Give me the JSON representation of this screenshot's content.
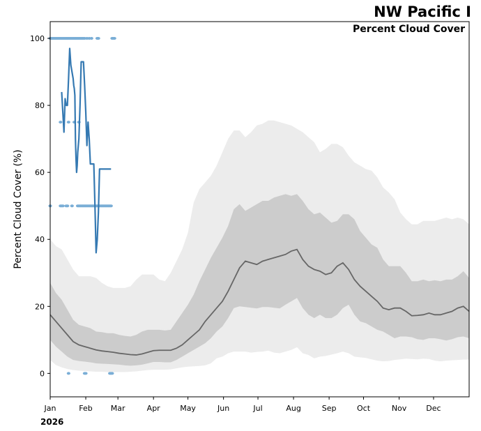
{
  "chart_data": {
    "type": "line",
    "title": "NW Pacific I",
    "subtitle": "Percent Cloud Cover",
    "ylabel": "Percent Cloud Cover (%)",
    "xlabel": "",
    "year_label": "2026",
    "xlim": [
      0,
      365
    ],
    "ylim": [
      -7,
      105
    ],
    "y_ticks": [
      0,
      20,
      40,
      60,
      80,
      100
    ],
    "x_ticks": [
      {
        "day": 0,
        "label": "Jan"
      },
      {
        "day": 31,
        "label": "Feb"
      },
      {
        "day": 59,
        "label": "Mar"
      },
      {
        "day": 90,
        "label": "Apr"
      },
      {
        "day": 120,
        "label": "May"
      },
      {
        "day": 151,
        "label": "Jun"
      },
      {
        "day": 181,
        "label": "Jul"
      },
      {
        "day": 212,
        "label": "Aug"
      },
      {
        "day": 243,
        "label": "Sep"
      },
      {
        "day": 273,
        "label": "Oct"
      },
      {
        "day": 304,
        "label": "Nov"
      },
      {
        "day": 334,
        "label": "Dec"
      }
    ],
    "climatology": {
      "day": [
        0,
        5,
        10,
        15,
        20,
        25,
        30,
        35,
        40,
        45,
        50,
        55,
        60,
        65,
        70,
        75,
        80,
        85,
        90,
        95,
        100,
        105,
        110,
        115,
        120,
        125,
        130,
        135,
        140,
        145,
        150,
        155,
        160,
        165,
        170,
        175,
        180,
        185,
        190,
        195,
        200,
        205,
        210,
        215,
        220,
        225,
        230,
        235,
        240,
        245,
        250,
        255,
        260,
        265,
        270,
        275,
        280,
        285,
        290,
        295,
        300,
        305,
        310,
        315,
        320,
        325,
        330,
        335,
        340,
        345,
        350,
        355,
        360,
        365
      ],
      "p10": [
        4,
        2.5,
        1.8,
        1.3,
        1.0,
        0.8,
        0.7,
        0.6,
        0.5,
        0.5,
        0.4,
        0.4,
        0.4,
        0.4,
        0.5,
        0.6,
        0.8,
        1.0,
        1.1,
        1.1,
        1.1,
        1.2,
        1.5,
        1.8,
        2.0,
        2.1,
        2.2,
        2.4,
        3.0,
        4.5,
        5.0,
        6.0,
        6.5,
        6.5,
        6.5,
        6.2,
        6.4,
        6.5,
        6.8,
        6.2,
        6.0,
        6.5,
        7.0,
        7.8,
        6.0,
        5.5,
        4.5,
        5.0,
        5.2,
        5.6,
        6.0,
        6.5,
        6.0,
        5.0,
        4.8,
        4.6,
        4.2,
        3.8,
        3.6,
        3.7,
        4.0,
        4.2,
        4.4,
        4.3,
        4.2,
        4.4,
        4.3,
        3.8,
        3.6,
        3.8,
        3.9,
        4.0,
        4.1,
        4.1
      ],
      "p25": [
        10,
        8,
        6.5,
        5,
        4,
        3.7,
        3.5,
        3.3,
        3.0,
        2.9,
        2.8,
        2.7,
        2.6,
        2.4,
        2.3,
        2.4,
        2.6,
        3.0,
        3.4,
        3.4,
        3.3,
        3.3,
        4.0,
        5.0,
        6.0,
        7.0,
        8.0,
        9.0,
        10.5,
        12.5,
        14.0,
        16.5,
        19.5,
        20.0,
        19.8,
        19.6,
        19.4,
        19.8,
        19.8,
        19.6,
        19.4,
        20.5,
        21.5,
        22.5,
        19.5,
        17.5,
        16.5,
        17.5,
        16.5,
        16.5,
        17.5,
        19.5,
        20.5,
        17.5,
        15.5,
        15.0,
        14.0,
        13.0,
        12.5,
        11.5,
        10.5,
        11.0,
        11.0,
        10.8,
        10.2,
        10.0,
        10.5,
        10.5,
        10.2,
        9.8,
        10.2,
        10.8,
        11.0,
        10.5
      ],
      "p75": [
        27,
        24,
        22,
        19,
        16,
        14.5,
        14,
        13.5,
        12.5,
        12.3,
        12.0,
        12.0,
        11.5,
        11.2,
        11.0,
        11.5,
        12.5,
        13.0,
        13.0,
        13.0,
        12.8,
        13.0,
        15.5,
        18.0,
        20.5,
        23.5,
        27.5,
        31,
        34.5,
        37.5,
        40.5,
        44,
        49,
        50.5,
        48.5,
        49.5,
        50.5,
        51.5,
        51.5,
        52.5,
        53,
        53.5,
        53,
        53.5,
        51.5,
        49,
        47.5,
        48,
        46.5,
        45,
        45.5,
        47.5,
        47.5,
        46,
        42.5,
        40.5,
        38.5,
        37.5,
        34,
        32,
        32,
        32,
        30,
        27.5,
        27.5,
        28,
        27.5,
        27.8,
        27.5,
        28,
        28,
        29,
        30.5,
        28.5
      ],
      "p90": [
        40,
        38,
        37,
        34,
        31,
        29,
        29,
        29,
        28.5,
        27,
        26,
        25.5,
        25.5,
        25.5,
        26,
        28,
        29.5,
        29.5,
        29.5,
        28,
        27.5,
        30,
        33.5,
        37,
        42,
        51,
        55,
        57,
        59,
        62,
        66,
        70,
        72.5,
        72.5,
        70.5,
        72,
        74,
        74.5,
        75.5,
        75.5,
        75,
        74.5,
        74,
        73,
        72,
        70.5,
        69,
        66,
        67,
        68.5,
        68.5,
        67.5,
        65,
        63,
        62,
        61,
        60.5,
        58.5,
        55.5,
        54,
        52,
        48,
        46,
        44.5,
        44.5,
        45.5,
        45.5,
        45.5,
        46,
        46.5,
        46,
        46.5,
        46,
        44.5
      ],
      "median": [
        17.5,
        15.5,
        13.5,
        11.5,
        9.5,
        8.5,
        8,
        7.5,
        7,
        6.7,
        6.5,
        6.3,
        6.0,
        5.8,
        5.6,
        5.5,
        5.8,
        6.3,
        6.8,
        6.9,
        6.9,
        6.9,
        7.5,
        8.5,
        10,
        11.5,
        13,
        15.5,
        17.5,
        19.5,
        21.5,
        24.5,
        28,
        31.5,
        33.5,
        33,
        32.5,
        33.5,
        34,
        34.5,
        35,
        35.5,
        36.5,
        37,
        34,
        32,
        31,
        30.5,
        29.5,
        30,
        32,
        33,
        31,
        28,
        26,
        24.5,
        23,
        21.5,
        19.5,
        19,
        19.5,
        19.5,
        18.5,
        17.2,
        17.3,
        17.5,
        18,
        17.5,
        17.5,
        18,
        18.5,
        19.5,
        20,
        18.5
      ]
    },
    "current": {
      "name": "2026",
      "color": "#3579b2",
      "day": [
        10,
        11,
        12,
        13,
        14,
        15,
        16,
        17,
        18,
        19,
        20,
        20.5,
        21,
        21.5,
        22,
        22.5,
        23,
        23.5,
        24,
        25,
        26,
        27,
        28,
        29,
        30,
        31,
        32,
        33,
        34,
        35,
        36,
        37,
        38,
        39,
        40,
        41,
        42,
        43,
        44,
        45,
        46,
        47,
        48,
        49,
        50,
        51,
        52,
        53
      ],
      "values": [
        84,
        78,
        72,
        82,
        80,
        80,
        88,
        97,
        92,
        90,
        88,
        86,
        85,
        83,
        70,
        64,
        60,
        62,
        66,
        70,
        80,
        93,
        93,
        93,
        86,
        78,
        68,
        75,
        70,
        62.5,
        62.5,
        62.5,
        62.5,
        50,
        36,
        40,
        48,
        61,
        61,
        61,
        61,
        61,
        61,
        61,
        61,
        61,
        61,
        61
      ]
    },
    "observations": {
      "color": "#7aaed6",
      "day": [
        0,
        1,
        2,
        3,
        4,
        5,
        6,
        7,
        8,
        9,
        10,
        11,
        12,
        13,
        14,
        15,
        16,
        17,
        18,
        19,
        20,
        21,
        22,
        23,
        24,
        25,
        26,
        27,
        28,
        29,
        30,
        32,
        34,
        36,
        41,
        42,
        54,
        55,
        56,
        0,
        9,
        10,
        11,
        14,
        15,
        19,
        24,
        25,
        26,
        27,
        28,
        29,
        30,
        31,
        32,
        33,
        34,
        35,
        36,
        37,
        38,
        39,
        40,
        41,
        42,
        43,
        44,
        45,
        46,
        47,
        48,
        49,
        50,
        51,
        52,
        53,
        9,
        16,
        21,
        25,
        16,
        30,
        31,
        52,
        53,
        54
      ],
      "values": [
        100,
        100,
        100,
        100,
        100,
        100,
        100,
        100,
        100,
        100,
        100,
        100,
        100,
        100,
        100,
        100,
        100,
        100,
        100,
        100,
        100,
        100,
        100,
        100,
        100,
        100,
        100,
        100,
        100,
        100,
        100,
        100,
        100,
        100,
        100,
        100,
        100,
        100,
        100,
        50,
        50,
        50,
        50,
        50,
        50,
        50,
        50,
        50,
        50,
        50,
        50,
        50,
        50,
        50,
        50,
        50,
        50,
        50,
        50,
        50,
        50,
        50,
        50,
        50,
        50,
        50,
        50,
        50,
        50,
        50,
        50,
        50,
        50,
        50,
        50,
        50,
        75,
        75,
        75,
        75,
        0,
        0,
        0,
        0,
        0,
        0
      ]
    },
    "band_colors": {
      "outer": "#ececec",
      "inner": "#cccccc",
      "median": "#666666"
    }
  }
}
